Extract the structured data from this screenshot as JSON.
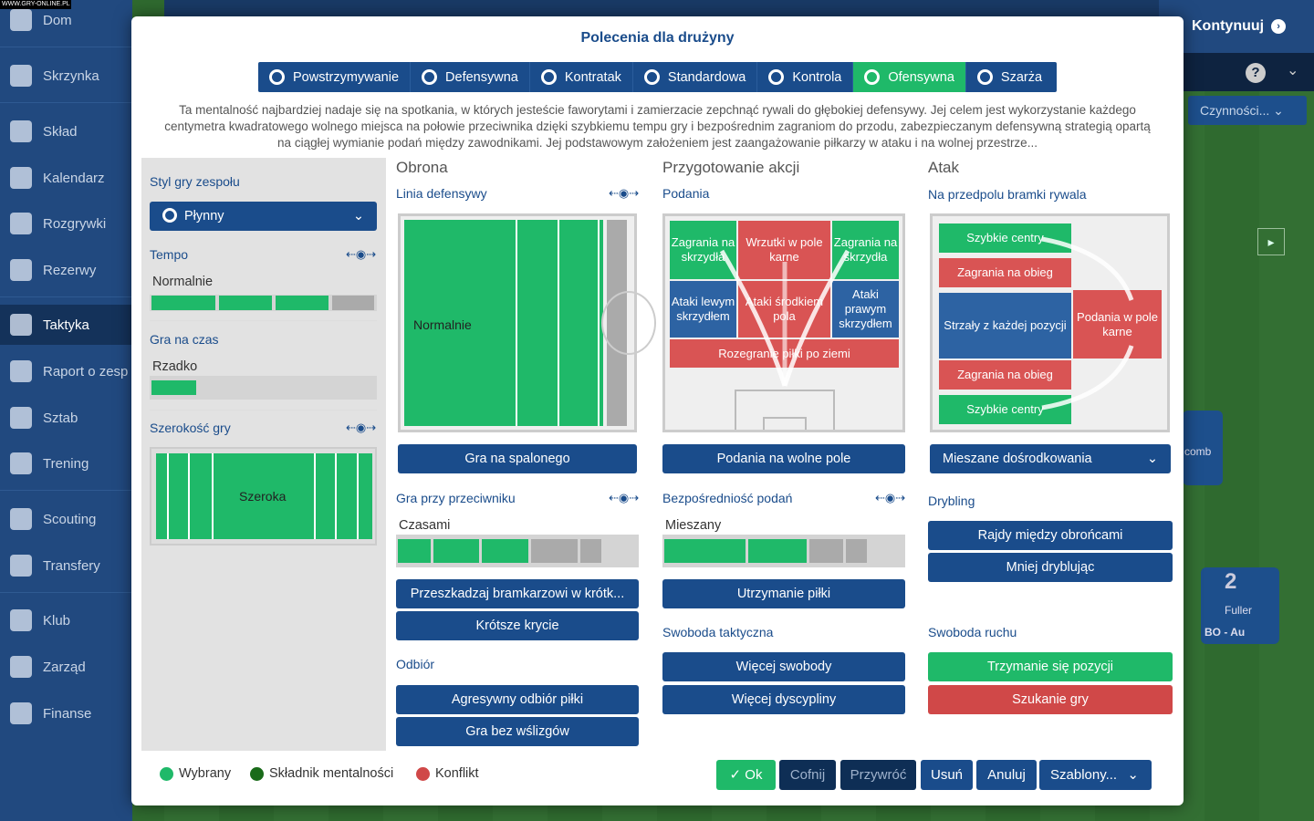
{
  "watermark": "WWW.GRY-ONLINE.PL",
  "sidebar": {
    "items": [
      {
        "label": "Dom",
        "icon": "home-icon"
      },
      {
        "label": "Skrzynka",
        "icon": "inbox-icon"
      },
      {
        "label": "Skład",
        "icon": "squad-icon"
      },
      {
        "label": "Kalendarz",
        "icon": "calendar-icon"
      },
      {
        "label": "Rozgrywki",
        "icon": "trophy-icon"
      },
      {
        "label": "Rezerwy",
        "icon": "reserves-icon"
      },
      {
        "label": "Taktyka",
        "icon": "tactics-icon"
      },
      {
        "label": "Raport o zesp",
        "icon": "report-icon"
      },
      {
        "label": "Sztab",
        "icon": "staff-icon"
      },
      {
        "label": "Trening",
        "icon": "training-icon"
      },
      {
        "label": "Scouting",
        "icon": "search-icon"
      },
      {
        "label": "Transfery",
        "icon": "transfer-icon"
      },
      {
        "label": "Klub",
        "icon": "club-icon"
      },
      {
        "label": "Zarząd",
        "icon": "board-icon"
      },
      {
        "label": "Finanse",
        "icon": "finance-icon"
      }
    ]
  },
  "right": {
    "continue_label": "Kontynuuj",
    "help_label": "?",
    "actions_label": "Czynności...",
    "player_number": "2",
    "player_name": "Fuller",
    "player_role": "BO - Au",
    "partial_label": "comb"
  },
  "dialog": {
    "title": "Polecenia dla drużyny",
    "tabs": [
      "Powstrzymywanie",
      "Defensywna",
      "Kontratak",
      "Standardowa",
      "Kontrola",
      "Ofensywna",
      "Szarża"
    ],
    "description": "Ta mentalność najbardziej nadaje się na spotkania, w których jesteście faworytami i zamierzacie zepchnąć rywali do głębokiej defensywy. Jej celem jest wykorzystanie każdego centymetra kwadratowego wolnego miejsca na połowie przeciwnika dzięki szybkiemu tempu gry i bezpośrednim zagraniom do przodu, zabezpieczanym defensywną strategią opartą na ciągłej wymianie podań między zawodnikami. Jej podstawowym założeniem jest zaangażowanie piłkarzy w ataku i na wolnej przestrze...",
    "left": {
      "style_label": "Styl gry zespołu",
      "style_value": "Płynny",
      "tempo_label": "Tempo",
      "tempo_value": "Normalnie",
      "time_label": "Gra na czas",
      "time_value": "Rzadko",
      "width_label": "Szerokość gry",
      "width_value": "Szeroka"
    },
    "defense": {
      "heading": "Obrona",
      "line_label": "Linia defensywy",
      "line_value": "Normalnie",
      "offside_button": "Gra na spalonego",
      "engage_label": "Gra przy przeciwniku",
      "engage_value": "Czasami",
      "keeper_button": "Przeszkadzaj bramkarzowi w krótk...",
      "marking_button": "Krótsze krycie",
      "tackle_label": "Odbiór",
      "tackle_button1": "Agresywny odbiór piłki",
      "tackle_button2": "Gra bez wślizgów"
    },
    "buildup": {
      "heading": "Przygotowanie akcji",
      "passing_label": "Podania",
      "zones": {
        "wide_left": "Zagrania na skrzydła",
        "wide_right": "Zagrania na skrzydła",
        "into_box": "Wrzutki w pole karne",
        "left_wing": "Ataki lewym skrzydłem",
        "center": "Ataki środkiem pola",
        "right_wing": "Ataki prawym skrzydłem",
        "ground": "Rozegranie piłki po ziemi"
      },
      "space_button": "Podania na wolne pole",
      "directness_label": "Bezpośredniość podań",
      "directness_value": "Mieszany",
      "retain_button": "Utrzymanie piłki",
      "freedom_label": "Swoboda taktyczna",
      "freedom_button1": "Więcej swobody",
      "freedom_button2": "Więcej dyscypliny"
    },
    "attack": {
      "heading": "Atak",
      "final_third_label": "Na przedpolu bramki rywala",
      "zones": {
        "early_top": "Szybkie centry",
        "overlap_top": "Zagrania na obieg",
        "shoot": "Strzały z każdej pozycji",
        "box": "Podania w pole karne",
        "overlap_bottom": "Zagrania na obieg",
        "early_bottom": "Szybkie centry"
      },
      "cross_select": "Mieszane dośrodkowania",
      "dribble_label": "Drybling",
      "dribble_button1": "Rajdy między obrońcami",
      "dribble_button2": "Mniej dryblując",
      "movement_label": "Swoboda ruchu",
      "hold_button": "Trzymanie się pozycji",
      "roam_button": "Szukanie gry"
    },
    "legend": [
      "Wybrany",
      "Składnik mentalności",
      "Konflikt"
    ],
    "footer": {
      "ok": "Ok",
      "undo": "Cofnij",
      "restore": "Przywróć",
      "delete": "Usuń",
      "cancel": "Anuluj",
      "templates": "Szablony..."
    },
    "values": {
      "tempo_level": 0.75,
      "time_level": 0.2,
      "engage_level": 0.55,
      "directness_level": 0.6
    }
  },
  "colors": {
    "selected": "#1fb969",
    "mentality": "#1a6b1a",
    "conflict": "#d04848",
    "primary": "#1a4c8b"
  }
}
